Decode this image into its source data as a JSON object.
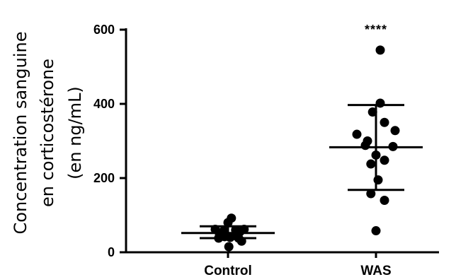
{
  "chart_data": {
    "type": "scatter",
    "y_title_lines": [
      "Concentration sanguine",
      "en corticostérone",
      "(en ng/mL)"
    ],
    "categories": [
      "Control",
      "WAS"
    ],
    "ylim": [
      0,
      600
    ],
    "yticks": [
      0,
      200,
      400,
      600
    ],
    "grid": false,
    "groups": [
      {
        "category": "Control",
        "mean": 52,
        "sd_low": 38,
        "sd_high": 70,
        "significance": "",
        "points": [
          {
            "offset": -0.3,
            "y": 62
          },
          {
            "offset": -0.2,
            "y": 48
          },
          {
            "offset": -0.1,
            "y": 58
          },
          {
            "offset": 0.0,
            "y": 80
          },
          {
            "offset": 0.08,
            "y": 92
          },
          {
            "offset": 0.18,
            "y": 60
          },
          {
            "offset": 0.28,
            "y": 55
          },
          {
            "offset": 0.38,
            "y": 62
          },
          {
            "offset": -0.22,
            "y": 38
          },
          {
            "offset": -0.08,
            "y": 42
          },
          {
            "offset": 0.05,
            "y": 40
          },
          {
            "offset": 0.15,
            "y": 45
          },
          {
            "offset": 0.25,
            "y": 38
          },
          {
            "offset": 0.32,
            "y": 30
          },
          {
            "offset": 0.02,
            "y": 15
          }
        ]
      },
      {
        "category": "WAS",
        "mean": 283,
        "sd_low": 168,
        "sd_high": 397,
        "significance": "****",
        "points": [
          {
            "offset": 0.1,
            "y": 545
          },
          {
            "offset": 0.1,
            "y": 402
          },
          {
            "offset": -0.08,
            "y": 378
          },
          {
            "offset": 0.2,
            "y": 350
          },
          {
            "offset": -0.45,
            "y": 318
          },
          {
            "offset": 0.45,
            "y": 328
          },
          {
            "offset": -0.2,
            "y": 300
          },
          {
            "offset": -0.25,
            "y": 288
          },
          {
            "offset": 0.4,
            "y": 285
          },
          {
            "offset": 0.0,
            "y": 262
          },
          {
            "offset": 0.2,
            "y": 248
          },
          {
            "offset": -0.12,
            "y": 238
          },
          {
            "offset": 0.05,
            "y": 195
          },
          {
            "offset": -0.12,
            "y": 158
          },
          {
            "offset": 0.2,
            "y": 140
          },
          {
            "offset": 0.0,
            "y": 58
          }
        ]
      }
    ]
  }
}
